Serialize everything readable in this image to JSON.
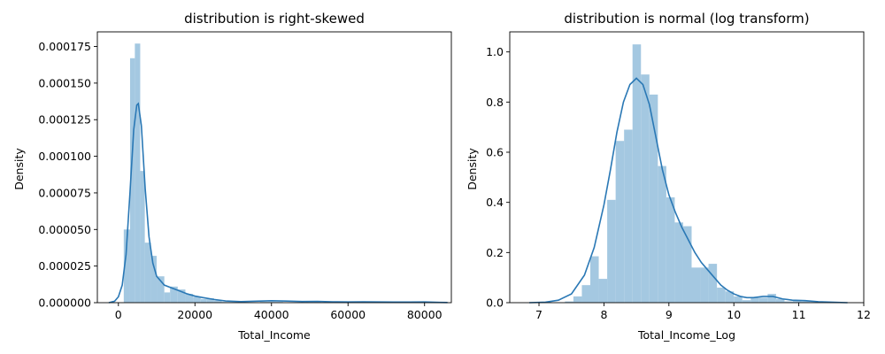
{
  "chart_data": [
    {
      "type": "histogram",
      "title": "distribution is right-skewed",
      "xlabel": "Total_Income",
      "ylabel": "Density",
      "xlim": [
        -5500,
        87000
      ],
      "ylim": [
        0,
        0.000185
      ],
      "xticks": [
        0,
        20000,
        40000,
        60000,
        80000
      ],
      "xtick_labels": [
        "0",
        "20000",
        "40000",
        "60000",
        "80000"
      ],
      "yticks": [
        0,
        2.5e-05,
        5e-05,
        7.5e-05,
        0.0001,
        0.000125,
        0.00015,
        0.000175
      ],
      "ytick_labels": [
        "0.000000",
        "0.000025",
        "0.000050",
        "0.000075",
        "0.000100",
        "0.000125",
        "0.000150",
        "0.000175"
      ],
      "grid": false,
      "bar_color": "#a4c8e1",
      "line_color": "#2a78b5",
      "bins": [
        {
          "x0": 1400,
          "x1": 3050,
          "density": 5e-05
        },
        {
          "x0": 3050,
          "x1": 4300,
          "density": 0.000167
        },
        {
          "x0": 4300,
          "x1": 5700,
          "density": 0.000177
        },
        {
          "x0": 5700,
          "x1": 6900,
          "density": 9e-05
        },
        {
          "x0": 6900,
          "x1": 8500,
          "density": 4.1e-05
        },
        {
          "x0": 8500,
          "x1": 10000,
          "density": 3.2e-05
        },
        {
          "x0": 10000,
          "x1": 12000,
          "density": 1.8e-05
        },
        {
          "x0": 12000,
          "x1": 13500,
          "density": 7e-06
        },
        {
          "x0": 13500,
          "x1": 15500,
          "density": 1.1e-05
        },
        {
          "x0": 15500,
          "x1": 17500,
          "density": 9e-06
        },
        {
          "x0": 17500,
          "x1": 19500,
          "density": 6e-06
        },
        {
          "x0": 19500,
          "x1": 21500,
          "density": 4e-06
        },
        {
          "x0": 21500,
          "x1": 23000,
          "density": 2.5e-06
        },
        {
          "x0": 23000,
          "x1": 25000,
          "density": 3e-06
        },
        {
          "x0": 25000,
          "x1": 27000,
          "density": 1.5e-06
        },
        {
          "x0": 27000,
          "x1": 29000,
          "density": 5e-07
        },
        {
          "x0": 29000,
          "x1": 31000,
          "density": 5e-07
        },
        {
          "x0": 37000,
          "x1": 39000,
          "density": 5e-07
        },
        {
          "x0": 39000,
          "x1": 41000,
          "density": 5e-07
        },
        {
          "x0": 41000,
          "x1": 43000,
          "density": 5e-07
        },
        {
          "x0": 49000,
          "x1": 51000,
          "density": 5e-07
        },
        {
          "x0": 51000,
          "x1": 53000,
          "density": 5e-07
        },
        {
          "x0": 63000,
          "x1": 65000,
          "density": 5e-07
        },
        {
          "x0": 79000,
          "x1": 81000,
          "density": 5e-07
        }
      ],
      "kde": [
        [
          -2500,
          0
        ],
        [
          -1000,
          1e-06
        ],
        [
          0,
          4e-06
        ],
        [
          1000,
          1.2e-05
        ],
        [
          2000,
          3.3e-05
        ],
        [
          3000,
          7.4e-05
        ],
        [
          4000,
          0.000118
        ],
        [
          4800,
          0.000135
        ],
        [
          5200,
          0.000136
        ],
        [
          6000,
          0.000121
        ],
        [
          7000,
          7.8e-05
        ],
        [
          8000,
          4.5e-05
        ],
        [
          9000,
          2.7e-05
        ],
        [
          10000,
          1.8e-05
        ],
        [
          12000,
          1.2e-05
        ],
        [
          14000,
          1e-05
        ],
        [
          16000,
          8e-06
        ],
        [
          18000,
          6e-06
        ],
        [
          20000,
          4.5e-06
        ],
        [
          22000,
          3.5e-06
        ],
        [
          25000,
          2.2e-06
        ],
        [
          28000,
          1.2e-06
        ],
        [
          32000,
          7e-07
        ],
        [
          36000,
          1e-06
        ],
        [
          40000,
          1.3e-06
        ],
        [
          44000,
          1.1e-06
        ],
        [
          48000,
          8e-07
        ],
        [
          52000,
          9e-07
        ],
        [
          56000,
          6e-07
        ],
        [
          60000,
          5e-07
        ],
        [
          64000,
          6e-07
        ],
        [
          68000,
          5e-07
        ],
        [
          72000,
          4e-07
        ],
        [
          76000,
          4e-07
        ],
        [
          80000,
          5e-07
        ],
        [
          84000,
          2e-07
        ],
        [
          86000,
          1e-07
        ]
      ]
    },
    {
      "type": "histogram",
      "title": "distribution is normal (log transform)",
      "xlabel": "Total_Income_Log",
      "ylabel": "Density",
      "xlim": [
        6.55,
        12.0
      ],
      "ylim": [
        0,
        1.08
      ],
      "xticks": [
        7,
        8,
        9,
        10,
        11,
        12
      ],
      "xtick_labels": [
        "7",
        "8",
        "9",
        "10",
        "11",
        "12"
      ],
      "yticks": [
        0,
        0.2,
        0.4,
        0.6,
        0.8,
        1.0
      ],
      "ytick_labels": [
        "0.0",
        "0.2",
        "0.4",
        "0.6",
        "0.8",
        "1.0"
      ],
      "grid": false,
      "bar_color": "#a4c8e1",
      "line_color": "#2a78b5",
      "bins": [
        {
          "x0": 7.4,
          "x1": 7.53,
          "density": 0.005
        },
        {
          "x0": 7.53,
          "x1": 7.66,
          "density": 0.025
        },
        {
          "x0": 7.66,
          "x1": 7.79,
          "density": 0.07
        },
        {
          "x0": 7.79,
          "x1": 7.92,
          "density": 0.185
        },
        {
          "x0": 7.92,
          "x1": 8.05,
          "density": 0.095
        },
        {
          "x0": 8.05,
          "x1": 8.18,
          "density": 0.41
        },
        {
          "x0": 8.18,
          "x1": 8.31,
          "density": 0.645
        },
        {
          "x0": 8.31,
          "x1": 8.44,
          "density": 0.69
        },
        {
          "x0": 8.44,
          "x1": 8.57,
          "density": 1.03
        },
        {
          "x0": 8.57,
          "x1": 8.7,
          "density": 0.91
        },
        {
          "x0": 8.7,
          "x1": 8.83,
          "density": 0.83
        },
        {
          "x0": 8.83,
          "x1": 8.96,
          "density": 0.545
        },
        {
          "x0": 8.96,
          "x1": 9.09,
          "density": 0.42
        },
        {
          "x0": 9.09,
          "x1": 9.22,
          "density": 0.32
        },
        {
          "x0": 9.22,
          "x1": 9.35,
          "density": 0.305
        },
        {
          "x0": 9.35,
          "x1": 9.48,
          "density": 0.14
        },
        {
          "x0": 9.48,
          "x1": 9.61,
          "density": 0.14
        },
        {
          "x0": 9.61,
          "x1": 9.74,
          "density": 0.155
        },
        {
          "x0": 9.74,
          "x1": 9.87,
          "density": 0.06
        },
        {
          "x0": 9.87,
          "x1": 10.0,
          "density": 0.045
        },
        {
          "x0": 10.0,
          "x1": 10.13,
          "density": 0.025
        },
        {
          "x0": 10.13,
          "x1": 10.26,
          "density": 0.01
        },
        {
          "x0": 10.26,
          "x1": 10.39,
          "density": 0.02
        },
        {
          "x0": 10.39,
          "x1": 10.52,
          "density": 0.02
        },
        {
          "x0": 10.52,
          "x1": 10.65,
          "density": 0.035
        },
        {
          "x0": 10.65,
          "x1": 10.78,
          "density": 0.015
        },
        {
          "x0": 10.78,
          "x1": 10.91,
          "density": 0.005
        },
        {
          "x0": 10.91,
          "x1": 11.04,
          "density": 0.01
        },
        {
          "x0": 11.04,
          "x1": 11.17,
          "density": 0.005
        },
        {
          "x0": 11.17,
          "x1": 11.3,
          "density": 0.005
        }
      ],
      "kde": [
        [
          6.85,
          0.0
        ],
        [
          7.1,
          0.002
        ],
        [
          7.3,
          0.01
        ],
        [
          7.5,
          0.035
        ],
        [
          7.7,
          0.11
        ],
        [
          7.85,
          0.22
        ],
        [
          8.0,
          0.39
        ],
        [
          8.1,
          0.53
        ],
        [
          8.2,
          0.68
        ],
        [
          8.3,
          0.8
        ],
        [
          8.4,
          0.87
        ],
        [
          8.5,
          0.895
        ],
        [
          8.6,
          0.87
        ],
        [
          8.7,
          0.79
        ],
        [
          8.8,
          0.66
        ],
        [
          8.9,
          0.53
        ],
        [
          9.0,
          0.43
        ],
        [
          9.1,
          0.36
        ],
        [
          9.2,
          0.3
        ],
        [
          9.3,
          0.25
        ],
        [
          9.4,
          0.2
        ],
        [
          9.5,
          0.16
        ],
        [
          9.6,
          0.13
        ],
        [
          9.7,
          0.1
        ],
        [
          9.8,
          0.07
        ],
        [
          9.9,
          0.05
        ],
        [
          10.0,
          0.035
        ],
        [
          10.1,
          0.025
        ],
        [
          10.2,
          0.02
        ],
        [
          10.3,
          0.02
        ],
        [
          10.45,
          0.025
        ],
        [
          10.6,
          0.025
        ],
        [
          10.75,
          0.015
        ],
        [
          10.9,
          0.01
        ],
        [
          11.1,
          0.008
        ],
        [
          11.3,
          0.004
        ],
        [
          11.5,
          0.002
        ],
        [
          11.75,
          0.0
        ]
      ]
    }
  ]
}
